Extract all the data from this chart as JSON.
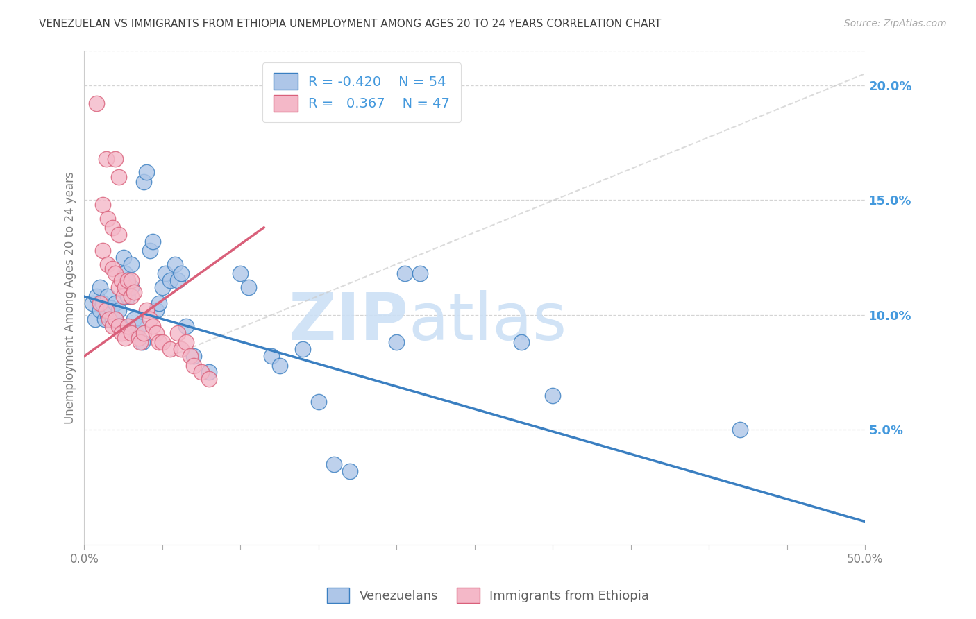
{
  "title": "VENEZUELAN VS IMMIGRANTS FROM ETHIOPIA UNEMPLOYMENT AMONG AGES 20 TO 24 YEARS CORRELATION CHART",
  "source": "Source: ZipAtlas.com",
  "ylabel": "Unemployment Among Ages 20 to 24 years",
  "xlim": [
    0.0,
    0.5
  ],
  "ylim": [
    0.0,
    0.215
  ],
  "xticks": [
    0.0,
    0.05,
    0.1,
    0.15,
    0.2,
    0.25,
    0.3,
    0.35,
    0.4,
    0.45,
    0.5
  ],
  "xtick_labels_show": [
    0.0,
    0.5
  ],
  "yticks": [
    0.05,
    0.1,
    0.15,
    0.2
  ],
  "ytick_labels": [
    "5.0%",
    "10.0%",
    "15.0%",
    "20.0%"
  ],
  "watermark_zip": "ZIP",
  "watermark_atlas": "atlas",
  "legend_r_blue": "-0.420",
  "legend_n_blue": "54",
  "legend_r_pink": "0.367",
  "legend_n_pink": "47",
  "blue_color": "#aec6e8",
  "pink_color": "#f4b8c8",
  "blue_line_color": "#3a7fc1",
  "pink_line_color": "#d9607a",
  "diag_color": "#cccccc",
  "blue_scatter": [
    [
      0.005,
      0.105
    ],
    [
      0.007,
      0.098
    ],
    [
      0.008,
      0.108
    ],
    [
      0.01,
      0.112
    ],
    [
      0.01,
      0.102
    ],
    [
      0.012,
      0.105
    ],
    [
      0.013,
      0.098
    ],
    [
      0.015,
      0.108
    ],
    [
      0.015,
      0.1
    ],
    [
      0.017,
      0.103
    ],
    [
      0.018,
      0.098
    ],
    [
      0.02,
      0.105
    ],
    [
      0.02,
      0.098
    ],
    [
      0.022,
      0.102
    ],
    [
      0.023,
      0.095
    ],
    [
      0.025,
      0.125
    ],
    [
      0.026,
      0.118
    ],
    [
      0.027,
      0.115
    ],
    [
      0.028,
      0.108
    ],
    [
      0.03,
      0.122
    ],
    [
      0.03,
      0.112
    ],
    [
      0.032,
      0.098
    ],
    [
      0.033,
      0.092
    ],
    [
      0.035,
      0.095
    ],
    [
      0.037,
      0.088
    ],
    [
      0.038,
      0.158
    ],
    [
      0.04,
      0.162
    ],
    [
      0.042,
      0.128
    ],
    [
      0.044,
      0.132
    ],
    [
      0.046,
      0.102
    ],
    [
      0.048,
      0.105
    ],
    [
      0.05,
      0.112
    ],
    [
      0.052,
      0.118
    ],
    [
      0.055,
      0.115
    ],
    [
      0.058,
      0.122
    ],
    [
      0.06,
      0.115
    ],
    [
      0.062,
      0.118
    ],
    [
      0.065,
      0.095
    ],
    [
      0.07,
      0.082
    ],
    [
      0.08,
      0.075
    ],
    [
      0.1,
      0.118
    ],
    [
      0.105,
      0.112
    ],
    [
      0.12,
      0.082
    ],
    [
      0.125,
      0.078
    ],
    [
      0.14,
      0.085
    ],
    [
      0.15,
      0.062
    ],
    [
      0.16,
      0.035
    ],
    [
      0.17,
      0.032
    ],
    [
      0.2,
      0.088
    ],
    [
      0.205,
      0.118
    ],
    [
      0.215,
      0.118
    ],
    [
      0.28,
      0.088
    ],
    [
      0.3,
      0.065
    ],
    [
      0.42,
      0.05
    ]
  ],
  "pink_scatter": [
    [
      0.008,
      0.192
    ],
    [
      0.014,
      0.168
    ],
    [
      0.02,
      0.168
    ],
    [
      0.022,
      0.16
    ],
    [
      0.012,
      0.148
    ],
    [
      0.015,
      0.142
    ],
    [
      0.018,
      0.138
    ],
    [
      0.022,
      0.135
    ],
    [
      0.012,
      0.128
    ],
    [
      0.015,
      0.122
    ],
    [
      0.018,
      0.12
    ],
    [
      0.02,
      0.118
    ],
    [
      0.022,
      0.112
    ],
    [
      0.024,
      0.115
    ],
    [
      0.025,
      0.108
    ],
    [
      0.026,
      0.112
    ],
    [
      0.028,
      0.115
    ],
    [
      0.03,
      0.108
    ],
    [
      0.03,
      0.115
    ],
    [
      0.032,
      0.11
    ],
    [
      0.01,
      0.105
    ],
    [
      0.014,
      0.102
    ],
    [
      0.016,
      0.098
    ],
    [
      0.018,
      0.095
    ],
    [
      0.02,
      0.098
    ],
    [
      0.022,
      0.095
    ],
    [
      0.024,
      0.092
    ],
    [
      0.026,
      0.09
    ],
    [
      0.028,
      0.095
    ],
    [
      0.03,
      0.092
    ],
    [
      0.035,
      0.09
    ],
    [
      0.036,
      0.088
    ],
    [
      0.038,
      0.092
    ],
    [
      0.04,
      0.102
    ],
    [
      0.042,
      0.098
    ],
    [
      0.044,
      0.095
    ],
    [
      0.046,
      0.092
    ],
    [
      0.048,
      0.088
    ],
    [
      0.05,
      0.088
    ],
    [
      0.055,
      0.085
    ],
    [
      0.06,
      0.092
    ],
    [
      0.062,
      0.085
    ],
    [
      0.065,
      0.088
    ],
    [
      0.068,
      0.082
    ],
    [
      0.07,
      0.078
    ],
    [
      0.075,
      0.075
    ],
    [
      0.08,
      0.072
    ]
  ],
  "blue_trend": {
    "x_start": 0.0,
    "x_end": 0.5,
    "y_start": 0.108,
    "y_end": 0.01
  },
  "pink_trend": {
    "x_start": 0.0,
    "x_end": 0.115,
    "y_start": 0.082,
    "y_end": 0.138
  },
  "diag_line": {
    "x_start": 0.055,
    "x_end": 0.5,
    "y_start": 0.082,
    "y_end": 0.205
  },
  "background_color": "#ffffff",
  "grid_color": "#d0d0d0",
  "title_color": "#404040",
  "right_tick_color": "#4499dd",
  "watermark_color": "#cce0f5",
  "ylabel_color": "#808080"
}
